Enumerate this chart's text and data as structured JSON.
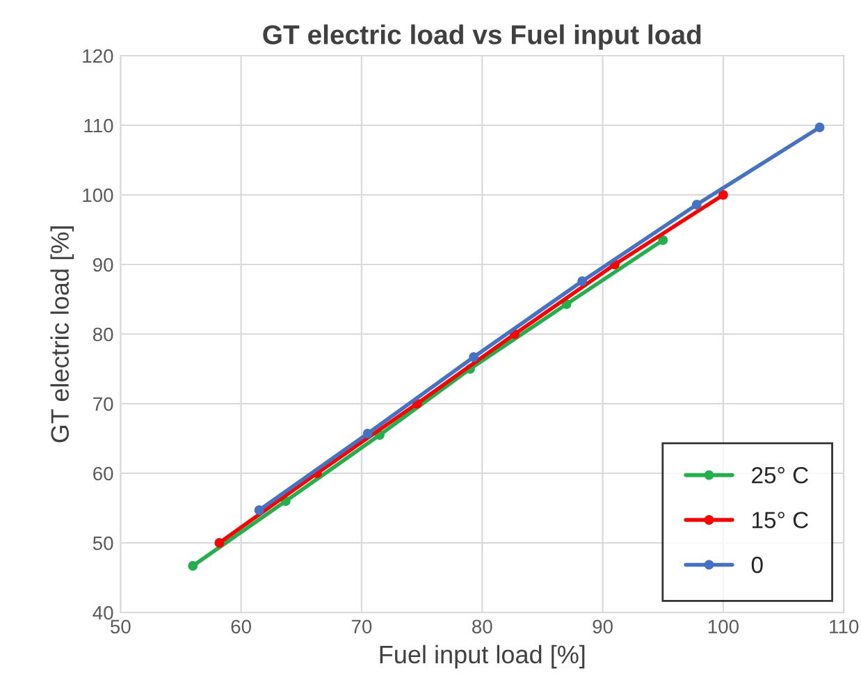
{
  "chart_data": {
    "type": "line",
    "title": "GT electric load vs Fuel input load",
    "xlabel": "Fuel input load [%]",
    "ylabel": "GT electric load [%]",
    "xlim": [
      50,
      110
    ],
    "xticks": [
      50,
      60,
      70,
      80,
      90,
      100,
      110
    ],
    "ylim": [
      40,
      120
    ],
    "yticks": [
      40,
      50,
      60,
      70,
      80,
      90,
      100,
      110,
      120
    ],
    "grid": true,
    "legend": "bottom right",
    "marker": "circle",
    "line_style": "solid",
    "series": [
      {
        "name": "25° C",
        "color": "#22b04c",
        "x": [
          56,
          63.7,
          71.5,
          79,
          87,
          95
        ],
        "values": [
          46.7,
          56,
          65.5,
          75,
          84.3,
          93.5
        ]
      },
      {
        "name": "15° C",
        "color": "#ff0000",
        "x": [
          58.2,
          66.3,
          74.6,
          82.7,
          91,
          100
        ],
        "values": [
          50,
          60,
          70,
          80,
          90,
          100
        ]
      },
      {
        "name": "0",
        "color": "#4472c4",
        "x": [
          61.5,
          70.5,
          79.3,
          88.3,
          97.8,
          108
        ],
        "values": [
          54.7,
          65.7,
          76.7,
          87.6,
          98.6,
          109.7
        ]
      }
    ]
  }
}
